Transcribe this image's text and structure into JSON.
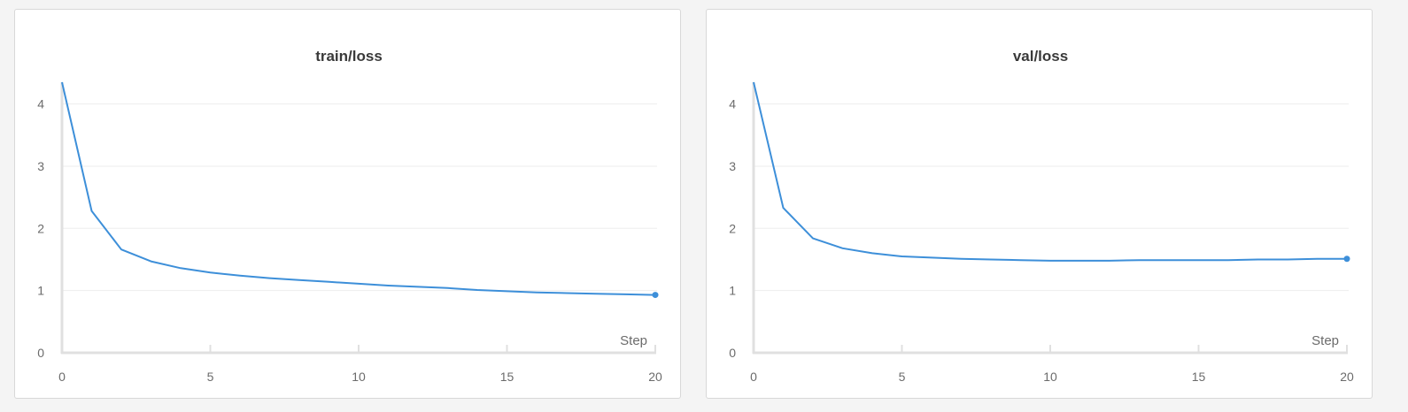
{
  "chart_data": [
    {
      "type": "line",
      "title": "train/loss",
      "xlabel": "Step",
      "ylabel": "",
      "xlim": [
        0,
        20
      ],
      "ylim": [
        0,
        4.35
      ],
      "x_ticks": [
        "0",
        "5",
        "10",
        "15",
        "20"
      ],
      "y_ticks": [
        "0",
        "1",
        "2",
        "3",
        "4"
      ],
      "grid": true,
      "color": "#3d8fd9",
      "series": [
        {
          "x": [
            0,
            1,
            2,
            3,
            4,
            5,
            6,
            7,
            8,
            9,
            10,
            11,
            12,
            13,
            14,
            15,
            16,
            17,
            18,
            19,
            20
          ],
          "y": [
            4.35,
            2.28,
            1.66,
            1.47,
            1.36,
            1.29,
            1.24,
            1.2,
            1.17,
            1.14,
            1.11,
            1.08,
            1.06,
            1.04,
            1.01,
            0.99,
            0.97,
            0.96,
            0.95,
            0.94,
            0.93
          ]
        }
      ]
    },
    {
      "type": "line",
      "title": "val/loss",
      "xlabel": "Step",
      "ylabel": "",
      "xlim": [
        0,
        20
      ],
      "ylim": [
        0,
        4.35
      ],
      "x_ticks": [
        "0",
        "5",
        "10",
        "15",
        "20"
      ],
      "y_ticks": [
        "0",
        "1",
        "2",
        "3",
        "4"
      ],
      "grid": true,
      "color": "#3d8fd9",
      "series": [
        {
          "x": [
            0,
            1,
            2,
            3,
            4,
            5,
            6,
            7,
            8,
            9,
            10,
            11,
            12,
            13,
            14,
            15,
            16,
            17,
            18,
            19,
            20
          ],
          "y": [
            4.35,
            2.33,
            1.84,
            1.68,
            1.6,
            1.55,
            1.53,
            1.51,
            1.5,
            1.49,
            1.48,
            1.48,
            1.48,
            1.49,
            1.49,
            1.49,
            1.49,
            1.5,
            1.5,
            1.51,
            1.51
          ]
        }
      ]
    }
  ]
}
